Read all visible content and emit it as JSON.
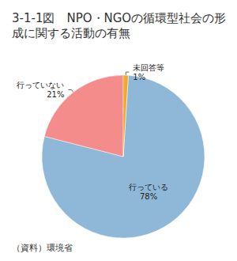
{
  "chart_data": {
    "type": "pie",
    "title": "3-1-1図　NPO・NGOの循環型社会の形成に関する活動の有無",
    "categories": [
      "行っている",
      "行っていない",
      "未回答等"
    ],
    "values": [
      78,
      21,
      1
    ],
    "value_labels": [
      "78%",
      "21%",
      "1%"
    ],
    "colors": [
      "#8fb8d8",
      "#f48c8c",
      "#f0a830"
    ],
    "data_labels": true,
    "source": "（資料）環境省"
  }
}
